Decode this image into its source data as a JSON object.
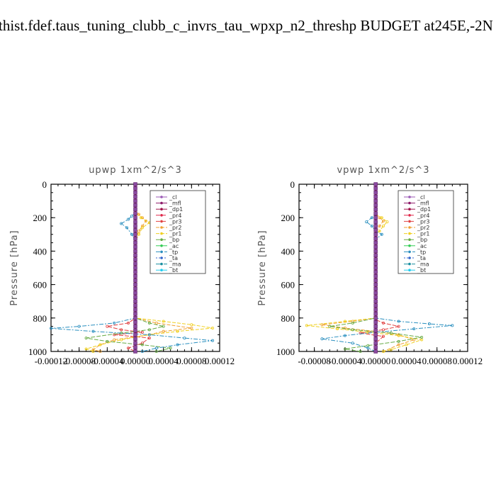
{
  "page_title": "thist.fdef.taus_tuning_clubb_c_invrs_tau_wpxp_n2_threshp  BUDGET at245E,-2N",
  "chart_data": [
    {
      "type": "line",
      "title": "upwp   1xm^2/s^3",
      "ylabel": "Pressure [hPa]",
      "xlabel": "",
      "xlim": [
        -0.00012,
        0.00012
      ],
      "ylim": [
        1000,
        0
      ],
      "xticks": [
        "-0.00012",
        "-0.00008",
        "-0.00004",
        "0.00000",
        "0.00004",
        "0.00008",
        "0.00012"
      ],
      "xtick_values": [
        -0.00012,
        -8e-05,
        -4e-05,
        0,
        4e-05,
        8e-05,
        0.00012
      ],
      "yticks": [
        "0",
        "200",
        "400",
        "600",
        "800",
        "1000"
      ],
      "ytick_values": [
        0,
        200,
        400,
        600,
        800,
        1000
      ],
      "legend_position": "top-right",
      "series": [
        {
          "name": "_cl",
          "color": "#9b59b6",
          "points": [
            [
              0,
              0
            ],
            [
              0,
              1000
            ]
          ]
        },
        {
          "name": "_mfl",
          "color": "#8e1c6b",
          "points": [
            [
              0,
              0
            ],
            [
              0,
              1000
            ]
          ]
        },
        {
          "name": "_dp1",
          "color": "#a0134b",
          "points": [
            [
              0,
              0
            ],
            [
              0,
              1000
            ]
          ]
        },
        {
          "name": "_pr4",
          "color": "#e0284a",
          "points": [
            [
              0,
              0
            ],
            [
              0,
              1000
            ]
          ]
        },
        {
          "name": "_pr3",
          "color": "#e04040",
          "points": [
            [
              0,
              0
            ],
            [
              0,
              800
            ],
            [
              -1e-05,
              830
            ],
            [
              -4e-05,
              850
            ],
            [
              -2e-05,
              870
            ],
            [
              1e-05,
              885
            ],
            [
              -3e-05,
              900
            ],
            [
              2e-05,
              920
            ],
            [
              1e-05,
              950
            ],
            [
              -1e-05,
              980
            ],
            [
              0,
              1000
            ]
          ]
        },
        {
          "name": "_pr2",
          "color": "#f0a030",
          "points": [
            [
              0,
              0
            ],
            [
              0,
              160
            ],
            [
              5e-06,
              180
            ],
            [
              1e-05,
              200
            ],
            [
              1.5e-05,
              220
            ],
            [
              1e-05,
              250
            ],
            [
              5e-06,
              280
            ],
            [
              0,
              320
            ],
            [
              0,
              800
            ],
            [
              3e-05,
              830
            ],
            [
              8e-05,
              860
            ],
            [
              4e-05,
              880
            ],
            [
              2e-05,
              900
            ],
            [
              -3e-05,
              930
            ],
            [
              -5e-05,
              960
            ],
            [
              -6e-05,
              990
            ],
            [
              -5e-05,
              1000
            ]
          ]
        },
        {
          "name": "_pr1",
          "color": "#f0d020",
          "points": [
            [
              0,
              0
            ],
            [
              0,
              170
            ],
            [
              8e-06,
              200
            ],
            [
              2e-05,
              230
            ],
            [
              1e-05,
              260
            ],
            [
              5e-06,
              300
            ],
            [
              0,
              340
            ],
            [
              0,
              800
            ],
            [
              4e-05,
              820
            ],
            [
              8e-05,
              840
            ],
            [
              0.00011,
              860
            ],
            [
              6e-05,
              880
            ],
            [
              2e-05,
              900
            ],
            [
              -2e-05,
              930
            ],
            [
              -5e-05,
              960
            ],
            [
              -7e-05,
              985
            ],
            [
              -6e-05,
              1000
            ]
          ]
        },
        {
          "name": "_bp",
          "color": "#66aa44",
          "points": [
            [
              0,
              0
            ],
            [
              0,
              800
            ],
            [
              2e-05,
              830
            ],
            [
              4e-05,
              850
            ],
            [
              2e-05,
              870
            ],
            [
              -2e-05,
              890
            ],
            [
              -7e-05,
              920
            ],
            [
              -4e-05,
              940
            ],
            [
              1e-05,
              960
            ],
            [
              5e-05,
              980
            ],
            [
              3e-05,
              1000
            ]
          ]
        },
        {
          "name": "_ac",
          "color": "#33cc55",
          "points": [
            [
              0,
              0
            ],
            [
              0,
              1000
            ]
          ]
        },
        {
          "name": "_tp",
          "color": "#2a8fbf",
          "points": [
            [
              0,
              0
            ],
            [
              0,
              170
            ],
            [
              -5e-06,
              190
            ],
            [
              -1e-05,
              210
            ],
            [
              -2e-05,
              235
            ],
            [
              -1.2e-05,
              260
            ],
            [
              -5e-06,
              300
            ],
            [
              0,
              340
            ],
            [
              0,
              800
            ],
            [
              -3e-05,
              830
            ],
            [
              -8e-05,
              850
            ],
            [
              -0.00012,
              862
            ],
            [
              -6e-05,
              880
            ],
            [
              2e-05,
              900
            ],
            [
              7e-05,
              920
            ],
            [
              0.00011,
              935
            ],
            [
              6e-05,
              960
            ],
            [
              3e-05,
              980
            ],
            [
              1e-05,
              1000
            ]
          ]
        },
        {
          "name": "_ta",
          "color": "#3366cc",
          "points": [
            [
              0,
              0
            ],
            [
              0,
              1000
            ]
          ]
        },
        {
          "name": "_ma",
          "color": "#1a8fa0",
          "points": [
            [
              0,
              0
            ],
            [
              0,
              1000
            ]
          ]
        },
        {
          "name": "_bt",
          "color": "#22ccee",
          "points": [
            [
              0,
              0
            ],
            [
              0,
              1000
            ]
          ]
        }
      ]
    },
    {
      "type": "line",
      "title": "vpwp   1xm^2/s^3",
      "ylabel": "Pressure [hPa]",
      "xlabel": "",
      "xlim": [
        -0.0001,
        0.00012
      ],
      "ylim": [
        1000,
        0
      ],
      "xticks": [
        "-0.00008",
        "-0.00004",
        "0.00000",
        "0.00004",
        "0.00008",
        "0.00012"
      ],
      "xtick_values": [
        -8e-05,
        -4e-05,
        0,
        4e-05,
        8e-05,
        0.00012
      ],
      "yticks": [
        "0",
        "200",
        "400",
        "600",
        "800",
        "1000"
      ],
      "ytick_values": [
        0,
        200,
        400,
        600,
        800,
        1000
      ],
      "legend_position": "top-right",
      "series": [
        {
          "name": "_cl",
          "color": "#9b59b6",
          "points": [
            [
              0,
              0
            ],
            [
              0,
              1000
            ]
          ]
        },
        {
          "name": "_mfl",
          "color": "#8e1c6b",
          "points": [
            [
              0,
              0
            ],
            [
              0,
              1000
            ]
          ]
        },
        {
          "name": "_dp1",
          "color": "#a0134b",
          "points": [
            [
              0,
              0
            ],
            [
              0,
              1000
            ]
          ]
        },
        {
          "name": "_pr4",
          "color": "#e0284a",
          "points": [
            [
              0,
              0
            ],
            [
              0,
              1000
            ]
          ]
        },
        {
          "name": "_pr3",
          "color": "#e04040",
          "points": [
            [
              0,
              0
            ],
            [
              0,
              810
            ],
            [
              1e-05,
              830
            ],
            [
              3e-05,
              850
            ],
            [
              1e-05,
              870
            ],
            [
              -2e-05,
              890
            ],
            [
              1e-05,
              910
            ],
            [
              0,
              950
            ],
            [
              0,
              1000
            ]
          ]
        },
        {
          "name": "_pr2",
          "color": "#f0a030",
          "points": [
            [
              0,
              0
            ],
            [
              0,
              180
            ],
            [
              5e-06,
              200
            ],
            [
              1e-05,
              220
            ],
            [
              5e-06,
              250
            ],
            [
              0,
              290
            ],
            [
              0,
              800
            ],
            [
              -3e-05,
              820
            ],
            [
              -7e-05,
              840
            ],
            [
              -4e-05,
              860
            ],
            [
              0,
              880
            ],
            [
              3e-05,
              900
            ],
            [
              5e-05,
              930
            ],
            [
              3e-05,
              960
            ],
            [
              1e-05,
              1000
            ]
          ]
        },
        {
          "name": "_pr1",
          "color": "#f0d020",
          "points": [
            [
              0,
              0
            ],
            [
              0,
              180
            ],
            [
              8e-06,
              200
            ],
            [
              1.5e-05,
              225
            ],
            [
              1e-05,
              250
            ],
            [
              5e-06,
              280
            ],
            [
              0,
              300
            ],
            [
              0,
              800
            ],
            [
              -4e-05,
              820
            ],
            [
              -9e-05,
              845
            ],
            [
              -5e-05,
              865
            ],
            [
              -1e-05,
              885
            ],
            [
              3e-05,
              905
            ],
            [
              6e-05,
              930
            ],
            [
              4e-05,
              960
            ],
            [
              2e-05,
              990
            ],
            [
              1e-05,
              1000
            ]
          ]
        },
        {
          "name": "_bp",
          "color": "#66aa44",
          "points": [
            [
              0,
              0
            ],
            [
              0,
              800
            ],
            [
              -3e-05,
              830
            ],
            [
              -6e-05,
              850
            ],
            [
              -3e-05,
              870
            ],
            [
              2e-05,
              890
            ],
            [
              6e-05,
              915
            ],
            [
              3e-05,
              940
            ],
            [
              -1e-05,
              965
            ],
            [
              -4e-05,
              985
            ],
            [
              -2e-05,
              1000
            ]
          ]
        },
        {
          "name": "_ac",
          "color": "#33cc55",
          "points": [
            [
              0,
              0
            ],
            [
              0,
              1000
            ]
          ]
        },
        {
          "name": "_tp",
          "color": "#2a8fbf",
          "points": [
            [
              0,
              0
            ],
            [
              0,
              180
            ],
            [
              -5e-06,
              200
            ],
            [
              -1.2e-05,
              225
            ],
            [
              -5e-06,
              250
            ],
            [
              0,
              280
            ],
            [
              8e-06,
              300
            ],
            [
              0,
              330
            ],
            [
              0,
              800
            ],
            [
              3e-05,
              820
            ],
            [
              7e-05,
              835
            ],
            [
              0.0001,
              845
            ],
            [
              5e-05,
              865
            ],
            [
              0,
              885
            ],
            [
              -4e-05,
              905
            ],
            [
              -7e-05,
              925
            ],
            [
              -3e-05,
              950
            ],
            [
              -1e-05,
              980
            ],
            [
              0,
              1000
            ]
          ]
        },
        {
          "name": "_ta",
          "color": "#3366cc",
          "points": [
            [
              0,
              0
            ],
            [
              0,
              1000
            ]
          ]
        },
        {
          "name": "_ma",
          "color": "#1a8fa0",
          "points": [
            [
              0,
              0
            ],
            [
              0,
              1000
            ]
          ]
        },
        {
          "name": "_bt",
          "color": "#22ccee",
          "points": [
            [
              0,
              0
            ],
            [
              0,
              1000
            ]
          ]
        }
      ]
    }
  ]
}
